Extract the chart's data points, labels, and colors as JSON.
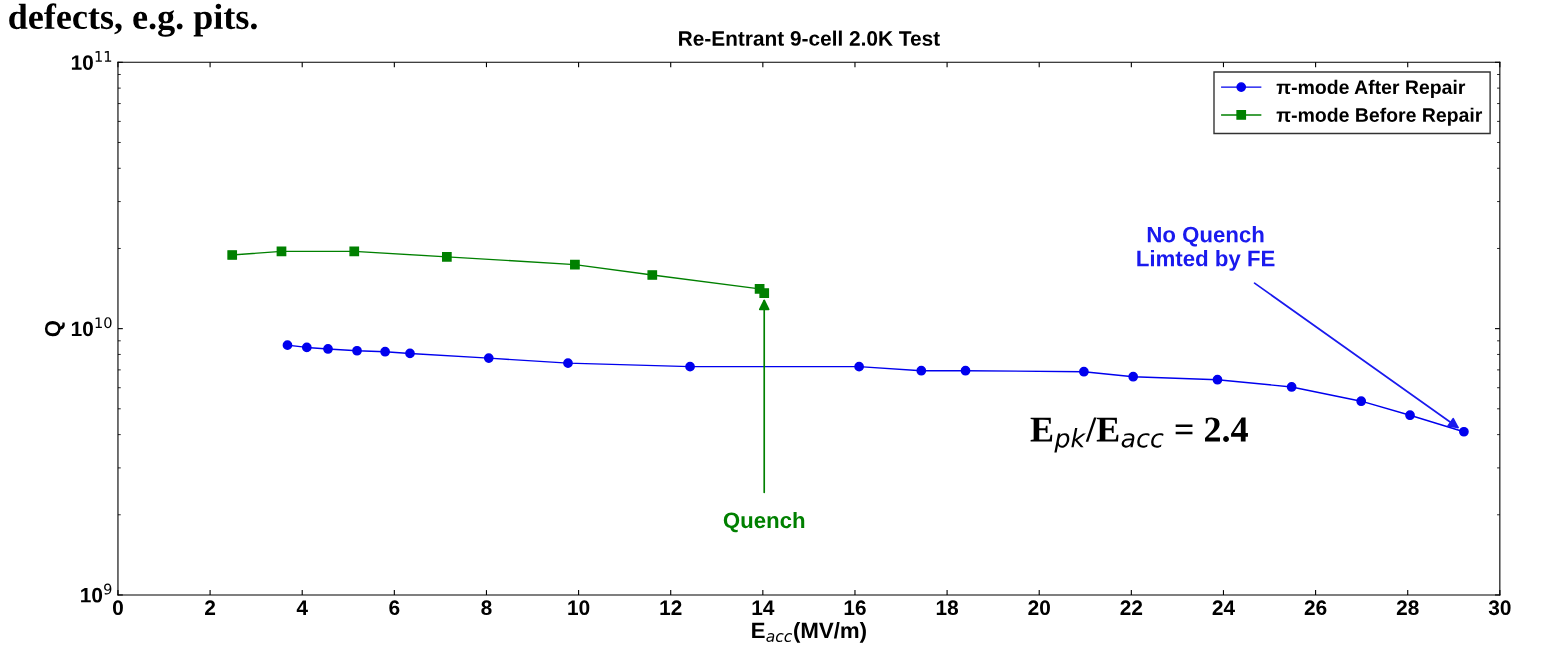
{
  "chart_data": {
    "type": "line",
    "title": "Re-Entrant 9-cell 2.0K Test",
    "xlabel": "E$_{acc}$(MV/m)",
    "ylabel": "Q",
    "log": "y",
    "xlim": [
      0,
      30
    ],
    "xticks": [
      0,
      2,
      4,
      6,
      8,
      10,
      12,
      14,
      16,
      18,
      20,
      22,
      24,
      26,
      28,
      30
    ],
    "ylim": [
      1000000000.0,
      100000000000.0
    ],
    "yticks": [
      {
        "value": 1000000000.0,
        "label": "10$^{9}$"
      },
      {
        "value": 10000000000.0,
        "label": "10$^{10}$"
      },
      {
        "value": 100000000000.0,
        "label": "10$^{11}$"
      }
    ],
    "grid": false,
    "legend": "top right",
    "line_style": "solid",
    "series": [
      {
        "name": "π-mode After Repair",
        "color": "#0000ee",
        "marker": "circle",
        "x": [
          3.68,
          4.1,
          4.56,
          5.19,
          5.8,
          6.34,
          8.05,
          9.77,
          12.42,
          16.09,
          17.44,
          18.4,
          20.97,
          22.04,
          23.87,
          25.48,
          26.99,
          28.05,
          29.22
        ],
        "values": [
          8670000000.0,
          8500000000.0,
          8390000000.0,
          8260000000.0,
          8190000000.0,
          8070000000.0,
          7750000000.0,
          7420000000.0,
          7200000000.0,
          7200000000.0,
          6950000000.0,
          6950000000.0,
          6890000000.0,
          6600000000.0,
          6430000000.0,
          6040000000.0,
          5340000000.0,
          4730000000.0,
          4100000000.0
        ]
      },
      {
        "name": "π-mode Before Repair",
        "color": "#008000",
        "marker": "square",
        "x": [
          2.48,
          3.55,
          5.13,
          7.14,
          9.92,
          11.6,
          13.93,
          14.03
        ],
        "values": [
          18900000000.0,
          19500000000.0,
          19500000000.0,
          18600000000.0,
          17400000000.0,
          15900000000.0,
          14100000000.0,
          13600000000.0
        ]
      }
    ],
    "annotations": [
      "defects, e.g. pits.",
      "E$_{pk}$/E$_{acc}$ = 2.4",
      {
        "text": "Quench",
        "x": 14.03,
        "y": 13600000000.0
      },
      {
        "text": "No Quench\nLimted by FE",
        "x": 29.22,
        "y": 4100000000.0
      }
    ]
  }
}
